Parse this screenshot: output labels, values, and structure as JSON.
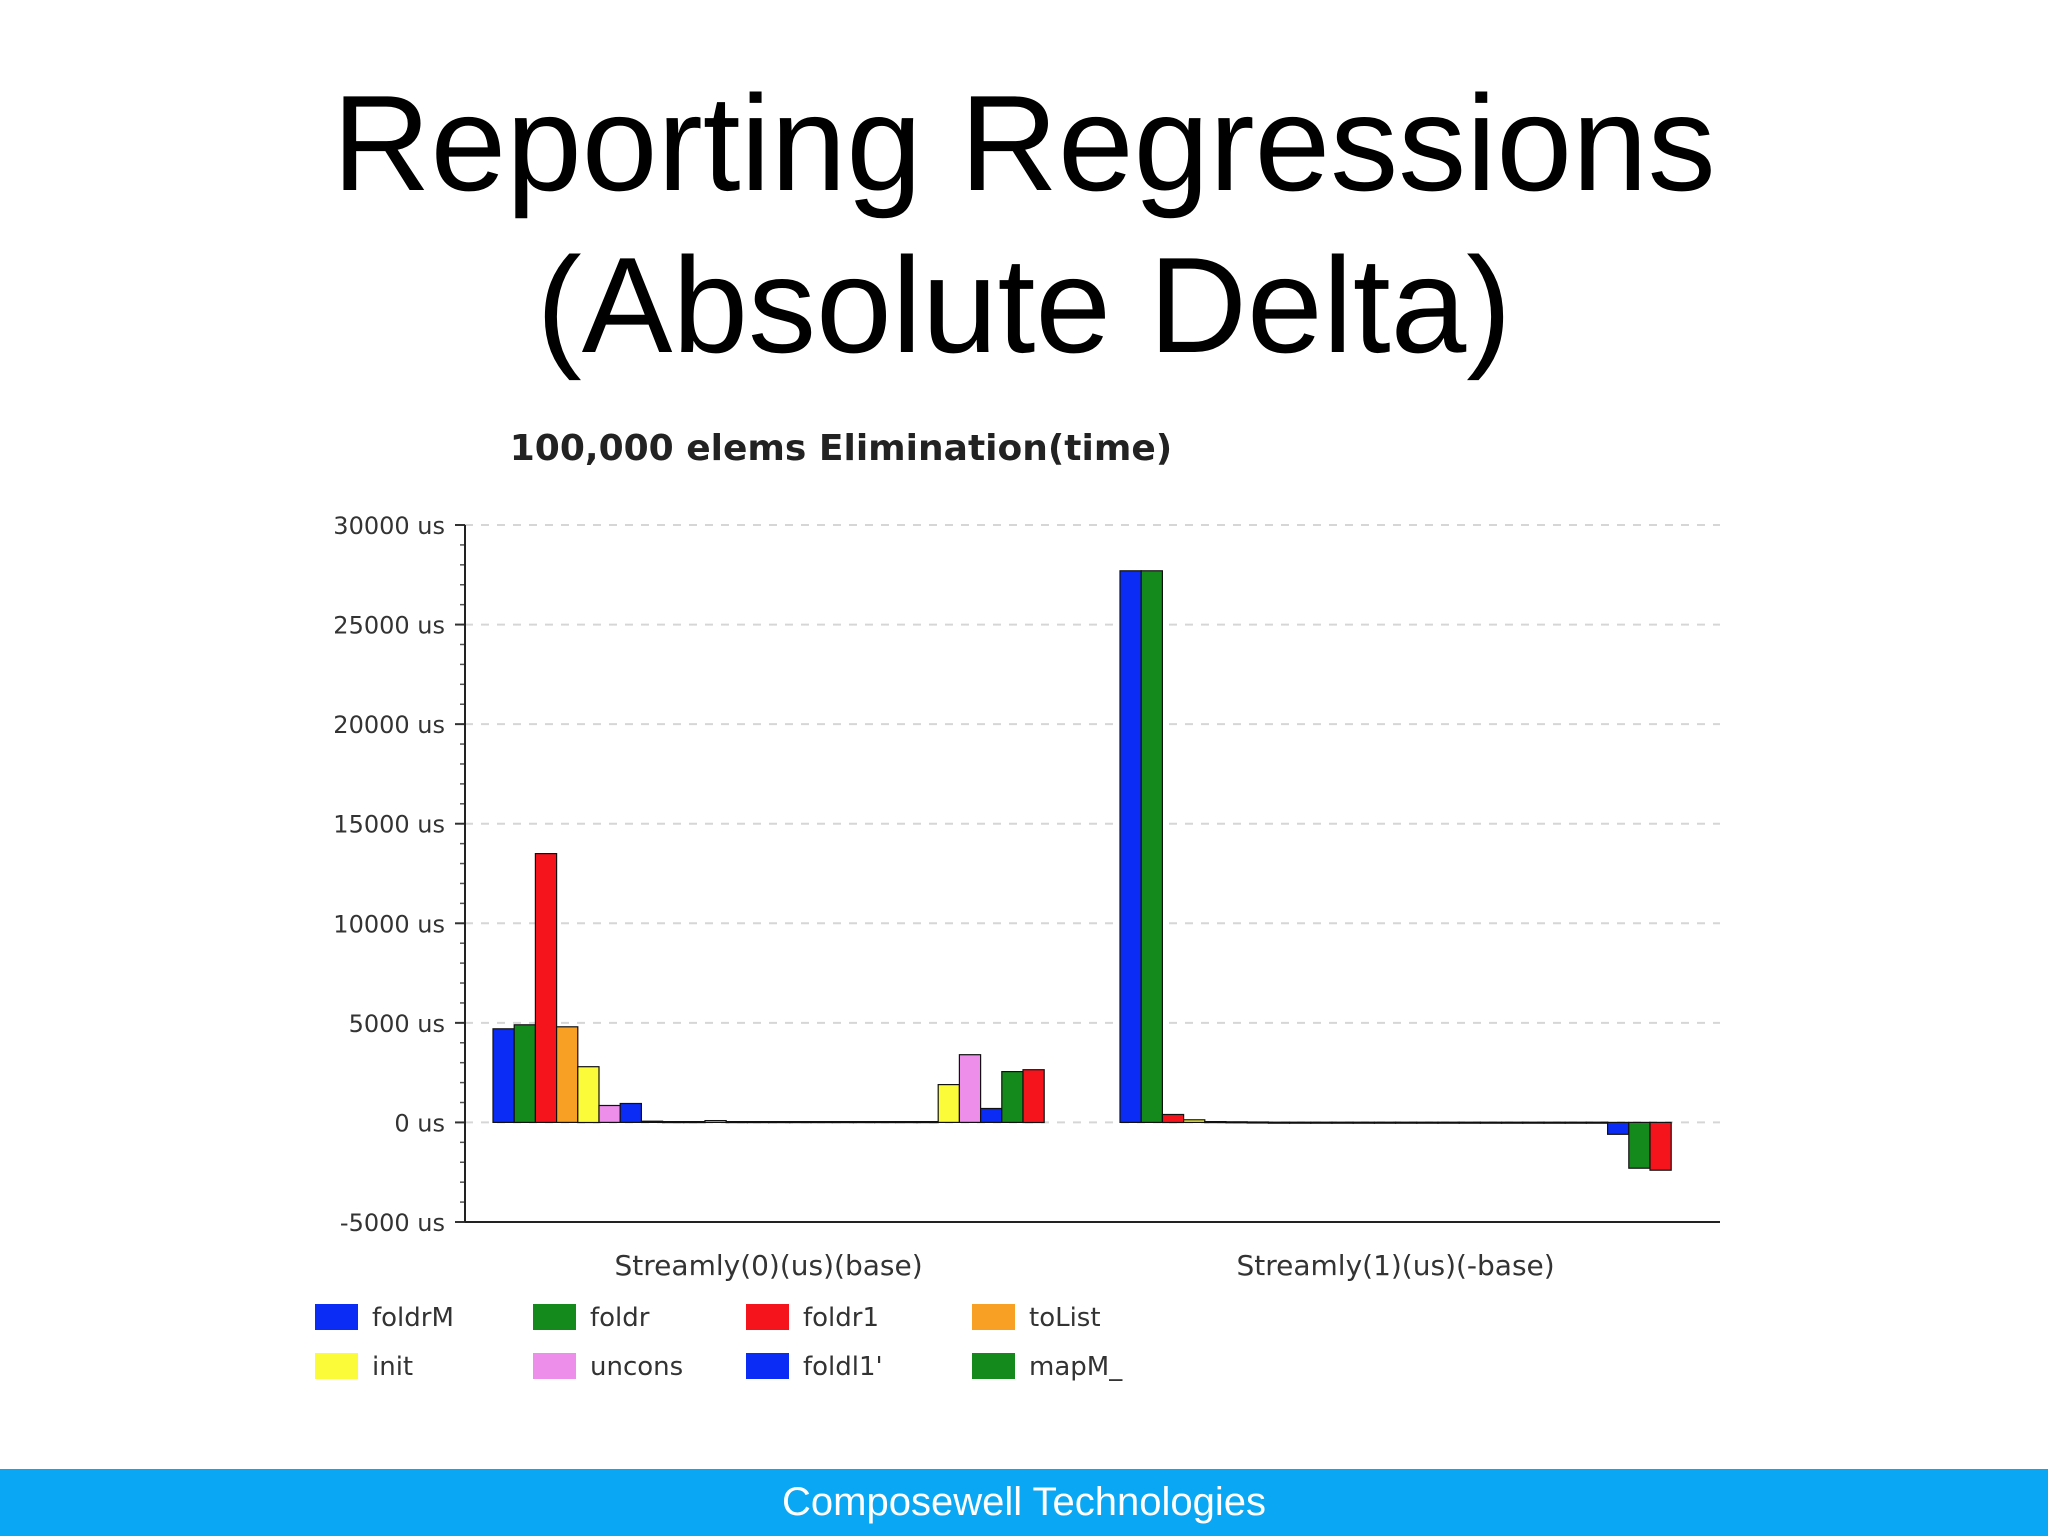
{
  "slide": {
    "title_line1": "Reporting Regressions",
    "title_line2": "(Absolute Delta)",
    "footer": "Composewell Technologies"
  },
  "chart_data": {
    "type": "bar",
    "title": "100,000 elems Elimination(time)",
    "y_unit_suffix": " us",
    "ylim": [
      -5000,
      30000
    ],
    "yticks": [
      -5000,
      0,
      5000,
      10000,
      15000,
      20000,
      25000,
      30000
    ],
    "ytick_labels": [
      "-5000 us",
      "0 us",
      "5000 us",
      "10000 us",
      "15000 us",
      "20000 us",
      "25000 us",
      "30000 us"
    ],
    "grid": "horizontal-dashed",
    "legend_placement": "bottom-left",
    "groups": [
      {
        "label": "Streamly(0)(us)(base)",
        "values": [
          4700,
          4900,
          13500,
          4800,
          2800,
          850,
          950,
          60,
          40,
          40,
          90,
          40,
          40,
          40,
          40,
          40,
          40,
          40,
          40,
          40,
          40,
          1900,
          3400,
          700,
          2550,
          2650
        ],
        "colors": [
          "#0a2cf5",
          "#138a1b",
          "#f5141c",
          "#f8a024",
          "#fbfb3a",
          "#ec8eea",
          "#0a2cf5",
          "#138a1b",
          "#f5141c",
          "#f8a024",
          "#fbfb3a",
          "#ec8eea",
          "#0a2cf5",
          "#138a1b",
          "#f5141c",
          "#f8a024",
          "#fbfb3a",
          "#ec8eea",
          "#0a2cf5",
          "#138a1b",
          "#f5141c",
          "#fbfb3a",
          "#ec8eea",
          "#0a2cf5",
          "#138a1b",
          "#f5141c"
        ]
      },
      {
        "label": "Streamly(1)(us)(-base)",
        "values": [
          27700,
          27700,
          400,
          130,
          40,
          30,
          20,
          10,
          10,
          10,
          10,
          10,
          10,
          10,
          10,
          10,
          10,
          10,
          10,
          10,
          10,
          10,
          10,
          -600,
          -2300,
          -2400
        ],
        "colors": [
          "#0a2cf5",
          "#138a1b",
          "#f5141c",
          "#fbfb3a",
          "#ec8eea",
          "#0a2cf5",
          "#138a1b",
          "#f5141c",
          "#f8a024",
          "#fbfb3a",
          "#ec8eea",
          "#0a2cf5",
          "#138a1b",
          "#f5141c",
          "#f8a024",
          "#fbfb3a",
          "#ec8eea",
          "#0a2cf5",
          "#138a1b",
          "#f5141c",
          "#f8a024",
          "#fbfb3a",
          "#ec8eea",
          "#0a2cf5",
          "#138a1b",
          "#f5141c"
        ]
      }
    ],
    "legend": [
      {
        "name": "foldrM",
        "color": "#0a2cf5"
      },
      {
        "name": "foldr",
        "color": "#138a1b"
      },
      {
        "name": "foldr1",
        "color": "#f5141c"
      },
      {
        "name": "toList",
        "color": "#f8a024"
      },
      {
        "name": "init",
        "color": "#fbfb3a"
      },
      {
        "name": "uncons",
        "color": "#ec8eea"
      },
      {
        "name": "foldl1'",
        "color": "#0a2cf5"
      },
      {
        "name": "mapM_",
        "color": "#138a1b"
      }
    ]
  }
}
